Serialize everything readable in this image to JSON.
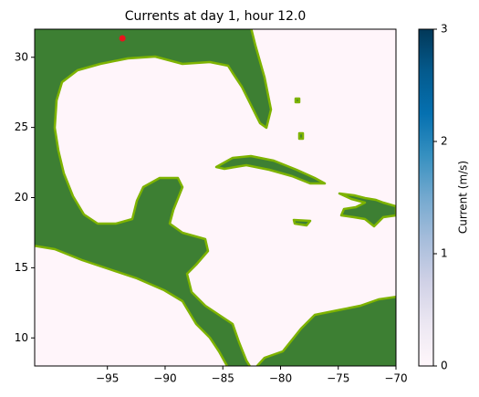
{
  "chart_data": {
    "type": "map",
    "title": "Currents at day   1, hour 12.0",
    "xlim": [
      -101.3,
      -70
    ],
    "xticks": [
      -95,
      -90,
      -85,
      -80,
      -75,
      -70
    ],
    "ylim": [
      8,
      32
    ],
    "yticks": [
      10,
      15,
      20,
      25,
      30
    ],
    "marker": {
      "x": -93.7,
      "y": 31.35,
      "color": "#e8141c"
    },
    "colorbar": {
      "label": "Current (m/s)",
      "lim": [
        0,
        3
      ],
      "ticks": [
        0,
        1,
        2,
        3
      ],
      "colors": [
        "#fff7fb",
        "#ece7f2",
        "#d0d1e6",
        "#a6bddb",
        "#74a9cf",
        "#3690c0",
        "#0570b0",
        "#045a8d",
        "#023858"
      ]
    }
  }
}
